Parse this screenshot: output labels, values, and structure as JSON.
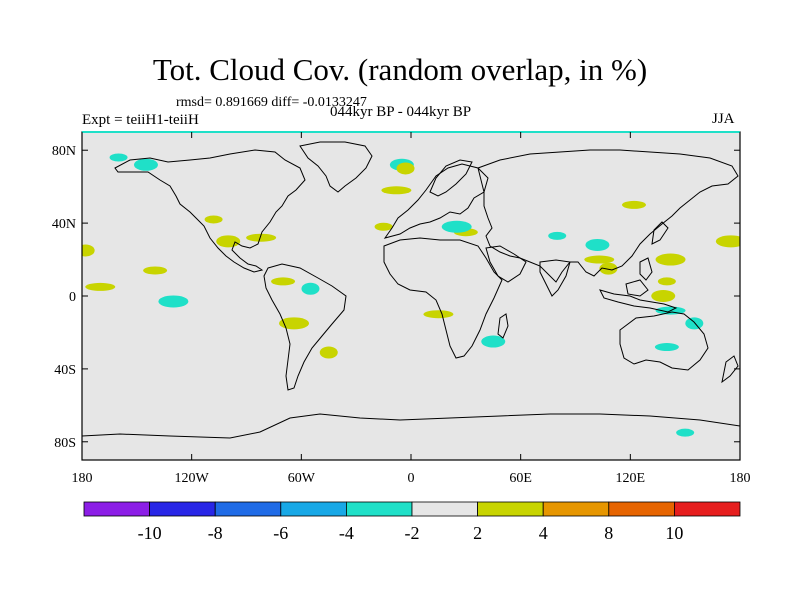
{
  "header": {
    "title": "Tot. Cloud Cov. (random overlap, in %)",
    "stats": "rmsd= 0.891669 diff= -0.0133247",
    "expt": "Expt = teiiH1-teiiH",
    "period": "044kyr BP - 044kyr BP",
    "season": "JJA"
  },
  "map": {
    "projection": "cylindrical-equidistant",
    "lon_range": [
      -180,
      180
    ],
    "lat_range": [
      -90,
      90
    ],
    "x_ticks": [
      {
        "lon": -180,
        "label": "180"
      },
      {
        "lon": -120,
        "label": "120W"
      },
      {
        "lon": -60,
        "label": "60W"
      },
      {
        "lon": 0,
        "label": "0"
      },
      {
        "lon": 60,
        "label": "60E"
      },
      {
        "lon": 120,
        "label": "120E"
      },
      {
        "lon": 180,
        "label": "180"
      }
    ],
    "y_ticks": [
      {
        "lat": 80,
        "label": "80N"
      },
      {
        "lat": 40,
        "label": "40N"
      },
      {
        "lat": 0,
        "label": "0"
      },
      {
        "lat": -40,
        "label": "40S"
      },
      {
        "lat": -80,
        "label": "80S"
      }
    ],
    "background_color": "#e6e6e6",
    "coastline_color": "#000000",
    "patches": [
      {
        "lon": -160,
        "lat": 76,
        "color": "#1fe0c8"
      },
      {
        "lon": -145,
        "lat": 72,
        "color": "#1fe0c8"
      },
      {
        "lon": -170,
        "lat": 5,
        "color": "#c8d400"
      },
      {
        "lon": -178,
        "lat": 25,
        "color": "#c8d400"
      },
      {
        "lon": -140,
        "lat": 14,
        "color": "#c8d400"
      },
      {
        "lon": -130,
        "lat": -3,
        "color": "#1fe0c8"
      },
      {
        "lon": -108,
        "lat": 42,
        "color": "#c8d400"
      },
      {
        "lon": -100,
        "lat": 30,
        "color": "#c8d400"
      },
      {
        "lon": -82,
        "lat": 32,
        "color": "#c8d400"
      },
      {
        "lon": -55,
        "lat": 4,
        "color": "#1fe0c8"
      },
      {
        "lon": -70,
        "lat": 8,
        "color": "#c8d400"
      },
      {
        "lon": -64,
        "lat": -15,
        "color": "#c8d400"
      },
      {
        "lon": -15,
        "lat": 38,
        "color": "#c8d400"
      },
      {
        "lon": -5,
        "lat": 72,
        "color": "#1fe0c8"
      },
      {
        "lon": -8,
        "lat": 58,
        "color": "#c8d400"
      },
      {
        "lon": -3,
        "lat": 70,
        "color": "#c8d400"
      },
      {
        "lon": 30,
        "lat": 35,
        "color": "#c8d400"
      },
      {
        "lon": 25,
        "lat": 38,
        "color": "#1fe0c8"
      },
      {
        "lon": 80,
        "lat": 33,
        "color": "#1fe0c8"
      },
      {
        "lon": 102,
        "lat": 28,
        "color": "#1fe0c8"
      },
      {
        "lon": 103,
        "lat": 20,
        "color": "#c8d400"
      },
      {
        "lon": 108,
        "lat": 15,
        "color": "#c8d400"
      },
      {
        "lon": 122,
        "lat": 50,
        "color": "#c8d400"
      },
      {
        "lon": 142,
        "lat": 20,
        "color": "#c8d400"
      },
      {
        "lon": 140,
        "lat": 8,
        "color": "#c8d400"
      },
      {
        "lon": 138,
        "lat": 0,
        "color": "#c8d400"
      },
      {
        "lon": 142,
        "lat": -8,
        "color": "#1fe0c8"
      },
      {
        "lon": 155,
        "lat": -15,
        "color": "#1fe0c8"
      },
      {
        "lon": 140,
        "lat": -28,
        "color": "#1fe0c8"
      },
      {
        "lon": 175,
        "lat": 30,
        "color": "#c8d400"
      },
      {
        "lon": 150,
        "lat": -75,
        "color": "#1fe0c8"
      },
      {
        "lon": 45,
        "lat": -25,
        "color": "#1fe0c8"
      },
      {
        "lon": 15,
        "lat": -10,
        "color": "#c8d400"
      },
      {
        "lon": -45,
        "lat": -31,
        "color": "#c8d400"
      }
    ]
  },
  "colorbar": {
    "colors": [
      "#8c1ee6",
      "#2826e6",
      "#1f6be6",
      "#18a8e6",
      "#1fe0c8",
      "#e6e6e6",
      "#c8d400",
      "#e69600",
      "#e66400",
      "#e61e1e"
    ],
    "labels": [
      "-10",
      "-8",
      "-6",
      "-4",
      "-2",
      "2",
      "4",
      "8",
      "10"
    ]
  }
}
